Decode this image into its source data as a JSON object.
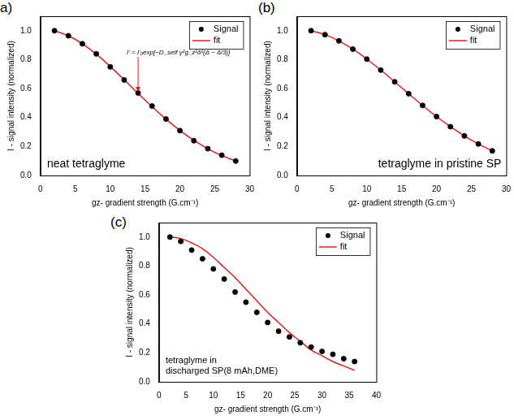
{
  "chart_data": [
    {
      "type": "line",
      "title": "a)",
      "note": [
        "neat tetraglyme"
      ],
      "formula": "I' = I'₀exp[−D_self γ²g_z²δ²(Δ − δ/3)]",
      "x_label": "gz- gradient strength (G.cm⁻¹)",
      "y_label": "I - signal intensity (normalized)",
      "x": [
        2,
        4,
        6,
        8,
        10,
        12,
        14,
        16,
        18,
        20,
        22,
        24,
        26,
        28
      ],
      "series": [
        {
          "name": "Signal",
          "type": "scatter",
          "marker": "circle",
          "color": "#000000",
          "values": [
            1.0,
            0.965,
            0.91,
            0.84,
            0.75,
            0.66,
            0.57,
            0.48,
            0.39,
            0.31,
            0.24,
            0.185,
            0.14,
            0.1
          ]
        },
        {
          "name": "fit",
          "type": "line",
          "line_style": "solid",
          "color": "#d62020",
          "values": [
            1.0,
            0.965,
            0.91,
            0.838,
            0.753,
            0.662,
            0.567,
            0.476,
            0.389,
            0.311,
            0.243,
            0.185,
            0.138,
            0.1
          ]
        }
      ],
      "xlim": [
        0,
        30
      ],
      "xticks": [
        0,
        5,
        10,
        15,
        20,
        25,
        30
      ],
      "ylim": [
        0,
        1.1
      ],
      "yticks": [
        {
          "value": 0,
          "label": "0.0"
        },
        0.2,
        0.4,
        0.6,
        0.8,
        {
          "value": 1,
          "label": "1.0"
        }
      ],
      "grid": false,
      "legend": "upper right"
    },
    {
      "type": "line",
      "title": "(b)",
      "note": [
        "tetraglyme in pristine SP"
      ],
      "x_label": "gz- gradient strength (G.cm⁻¹)",
      "y_label": "I - signal intensity (normalized)",
      "x": [
        2,
        4,
        6,
        8,
        10,
        12,
        14,
        16,
        18,
        20,
        22,
        24,
        26,
        28
      ],
      "series": [
        {
          "name": "Signal",
          "type": "scatter",
          "marker": "circle",
          "color": "#000000",
          "values": [
            1.0,
            0.973,
            0.93,
            0.873,
            0.804,
            0.728,
            0.647,
            0.565,
            0.484,
            0.407,
            0.337,
            0.273,
            0.218,
            0.17
          ]
        },
        {
          "name": "fit",
          "type": "line",
          "line_style": "solid",
          "color": "#d62020",
          "values": [
            1.0,
            0.973,
            0.93,
            0.873,
            0.804,
            0.728,
            0.647,
            0.565,
            0.484,
            0.407,
            0.337,
            0.273,
            0.218,
            0.17
          ]
        }
      ],
      "xlim": [
        0,
        30
      ],
      "xticks": [
        0,
        5,
        10,
        15,
        20,
        25,
        30
      ],
      "ylim": [
        0,
        1.1
      ],
      "yticks": [
        {
          "value": 0,
          "label": "0.0"
        },
        0.2,
        0.4,
        0.6,
        0.8,
        {
          "value": 1,
          "label": "1.0"
        }
      ],
      "grid": false,
      "legend": "upper right"
    },
    {
      "type": "line",
      "title": "(c)",
      "note": [
        "tetraglyme in",
        "discharged SP(8 mAh,DME)"
      ],
      "x_label": "gz- gradient strength (G.cm⁻¹)",
      "y_label": "I - signal intensity (normalized)",
      "x": [
        2,
        4,
        6,
        8,
        10,
        12,
        14,
        16,
        18,
        20,
        22,
        24,
        26,
        28,
        30,
        32,
        34,
        36
      ],
      "series": [
        {
          "name": "Signal",
          "type": "scatter",
          "marker": "circle",
          "color": "#000000",
          "values": [
            1.0,
            0.97,
            0.91,
            0.85,
            0.78,
            0.71,
            0.62,
            0.55,
            0.48,
            0.41,
            0.35,
            0.31,
            0.27,
            0.24,
            0.21,
            0.19,
            0.16,
            0.14
          ]
        },
        {
          "name": "fit",
          "type": "line",
          "line_style": "solid",
          "color": "#d62020",
          "values": [
            1.0,
            0.99,
            0.96,
            0.92,
            0.86,
            0.79,
            0.72,
            0.64,
            0.56,
            0.48,
            0.41,
            0.34,
            0.28,
            0.22,
            0.18,
            0.14,
            0.11,
            0.08
          ]
        }
      ],
      "xlim": [
        0,
        40
      ],
      "xticks": [
        0,
        5,
        10,
        15,
        20,
        25,
        30,
        35,
        40
      ],
      "ylim": [
        0,
        1.1
      ],
      "yticks": [
        {
          "value": 0,
          "label": "0.0"
        },
        0.2,
        0.4,
        0.6,
        0.8,
        {
          "value": 1,
          "label": "1.0"
        }
      ],
      "grid": false,
      "legend": "upper right"
    }
  ]
}
